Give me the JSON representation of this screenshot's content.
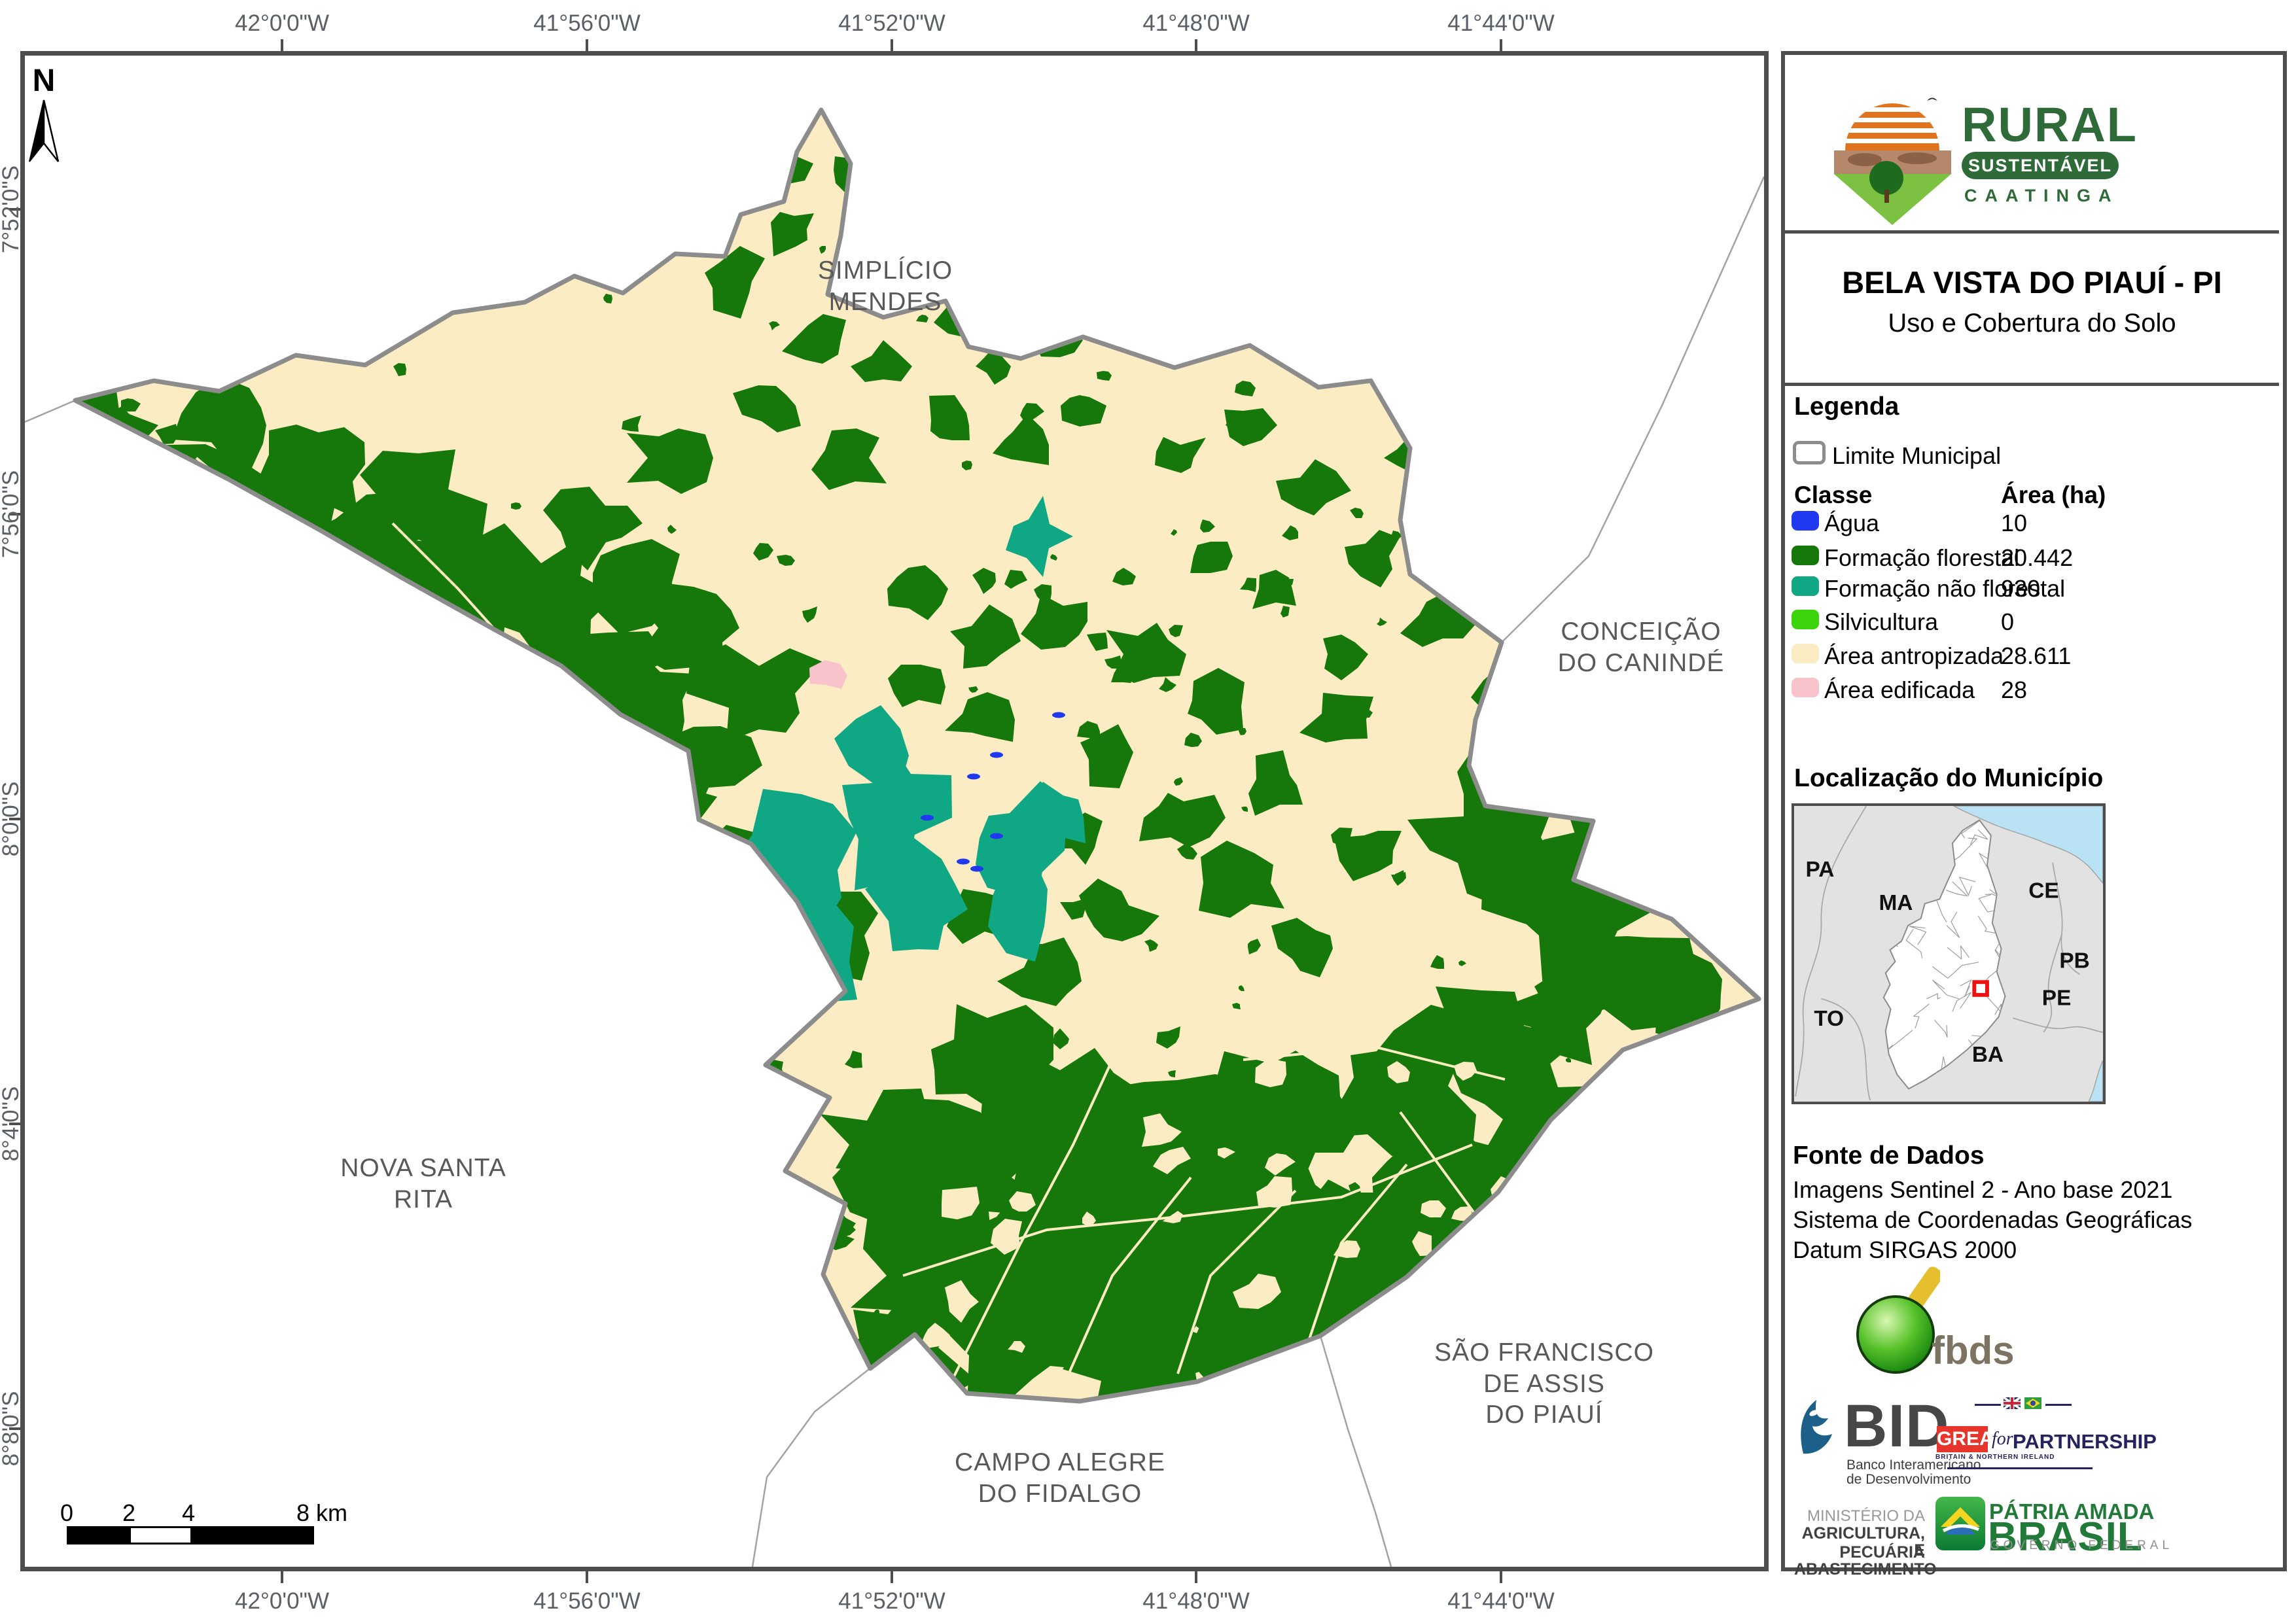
{
  "colors": {
    "agua": "#2038f0",
    "formacao_florestal": "#16770a",
    "formacao_nao_florestal": "#10a884",
    "silvicultura": "#3bd40a",
    "area_antropizada": "#fbecc3",
    "area_edificada": "#f9c3cc",
    "limite_municipal": "#8c8c8c",
    "frame_border": "#4d4d4d",
    "ocean": "#b9e2f4",
    "marker": "#ee1111"
  },
  "axis": {
    "top": [
      "42°0'0\"W",
      "41°56'0\"W",
      "41°52'0\"W",
      "41°48'0\"W",
      "41°44'0\"W"
    ],
    "bottom": [
      "42°0'0\"W",
      "41°56'0\"W",
      "41°52'0\"W",
      "41°48'0\"W",
      "41°44'0\"W"
    ],
    "left": [
      "7°52'0\"S",
      "7°56'0\"S",
      "8°0'0\"S",
      "8°4'0\"S",
      "8°8'0\"S"
    ]
  },
  "north_label": "N",
  "scalebar": {
    "t0": "0",
    "t2": "2",
    "t4": "4",
    "t8": "8 km"
  },
  "neighbors": {
    "simplicio": "SIMPLÍCIO\nMENDES",
    "conceicao": "CONCEIÇÃO\nDO CANINDÉ",
    "nova": "NOVA SANTA\nRITA",
    "saofrancisco": "SÃO FRANCISCO\nDE ASSIS\nDO PIAUÍ",
    "campoalegre": "CAMPO ALEGRE\nDO FIDALGO"
  },
  "panel": {
    "logo": {
      "title": "RURAL",
      "badge": "SUSTENTÁVEL",
      "sub": "CAATINGA"
    },
    "title": "BELA VISTA DO PIAUÍ - PI",
    "subtitle": "Uso e Cobertura do Solo",
    "legend": {
      "heading": "Legenda",
      "limite": "Limite Municipal",
      "col_class": "Classe",
      "col_area": "Área (ha)",
      "rows": [
        {
          "label": "Água",
          "value": "10",
          "color": "#2038f0"
        },
        {
          "label": "Formação florestal",
          "value": "20.442",
          "color": "#16770a"
        },
        {
          "label": "Formação não florestal",
          "value": "930",
          "color": "#10a884"
        },
        {
          "label": "Silvicultura",
          "value": "0",
          "color": "#3bd40a"
        },
        {
          "label": "Área antropizada",
          "value": "28.611",
          "color": "#fbecc3"
        },
        {
          "label": "Área edificada",
          "value": "28",
          "color": "#f9c3cc"
        }
      ]
    },
    "localizacao": {
      "heading": "Localização do Município",
      "states": [
        "PA",
        "MA",
        "TO",
        "CE",
        "PB",
        "PE",
        "BA"
      ]
    },
    "fonte": {
      "heading": "Fonte de Dados",
      "lines": [
        "Imagens Sentinel 2 - Ano base 2021",
        "Sistema de Coordenadas Geográficas",
        "Datum SIRGAS 2000"
      ]
    },
    "logos": {
      "fbds": "fbds",
      "bid": {
        "name": "BID",
        "line1": "Banco Interamericano",
        "line2": "de Desenvolvimento"
      },
      "great": {
        "word": "GREAT",
        "sub": "BRITAIN & NORTHERN IRELAND",
        "conj": "for",
        "partner": "PARTNERSHIP"
      },
      "ministerio": {
        "l1": "MINISTÉRIO DA",
        "l2": "AGRICULTURA, PECUÁRIA",
        "l3": "E ABASTECIMENTO"
      },
      "brasil": {
        "l1": "PÁTRIA AMADA",
        "l2": "BRASIL",
        "l3": "GOVERNO FEDERAL"
      }
    }
  }
}
